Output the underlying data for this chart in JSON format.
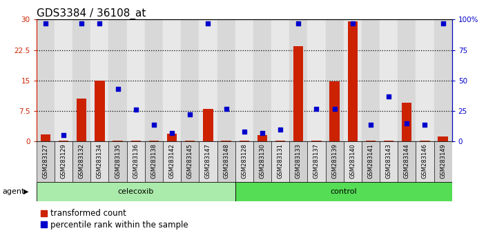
{
  "title": "GDS3384 / 36108_at",
  "samples": [
    "GSM283127",
    "GSM283129",
    "GSM283132",
    "GSM283134",
    "GSM283135",
    "GSM283136",
    "GSM283138",
    "GSM283142",
    "GSM283145",
    "GSM283147",
    "GSM283148",
    "GSM283128",
    "GSM283130",
    "GSM283131",
    "GSM283133",
    "GSM283137",
    "GSM283139",
    "GSM283140",
    "GSM283141",
    "GSM283143",
    "GSM283144",
    "GSM283146",
    "GSM283149"
  ],
  "transformed_count": [
    1.8,
    0.3,
    10.5,
    15.0,
    0.3,
    0.2,
    0.3,
    2.0,
    0.2,
    8.0,
    0.2,
    0.3,
    1.5,
    0.3,
    23.5,
    0.3,
    14.8,
    29.5,
    0.3,
    0.3,
    9.5,
    0.3,
    1.2
  ],
  "percentile_rank": [
    97,
    5,
    97,
    97,
    43,
    26,
    14,
    7,
    22,
    97,
    27,
    8,
    7,
    10,
    97,
    27,
    27,
    97,
    14,
    37,
    15,
    14,
    97
  ],
  "celecoxib_count": 11,
  "control_count": 12,
  "bar_color": "#cc2200",
  "dot_color": "#0000cc",
  "celecoxib_bg": "#aaeaaa",
  "control_bg": "#55dd55",
  "yticks_left": [
    0,
    7.5,
    15,
    22.5,
    30
  ],
  "yticks_right": [
    0,
    25,
    50,
    75,
    100
  ],
  "ylim_left": [
    0,
    30
  ],
  "ylim_right": [
    0,
    100
  ],
  "title_fontsize": 11,
  "tick_fontsize": 7.5,
  "label_fontsize": 8,
  "legend_fontsize": 8.5
}
